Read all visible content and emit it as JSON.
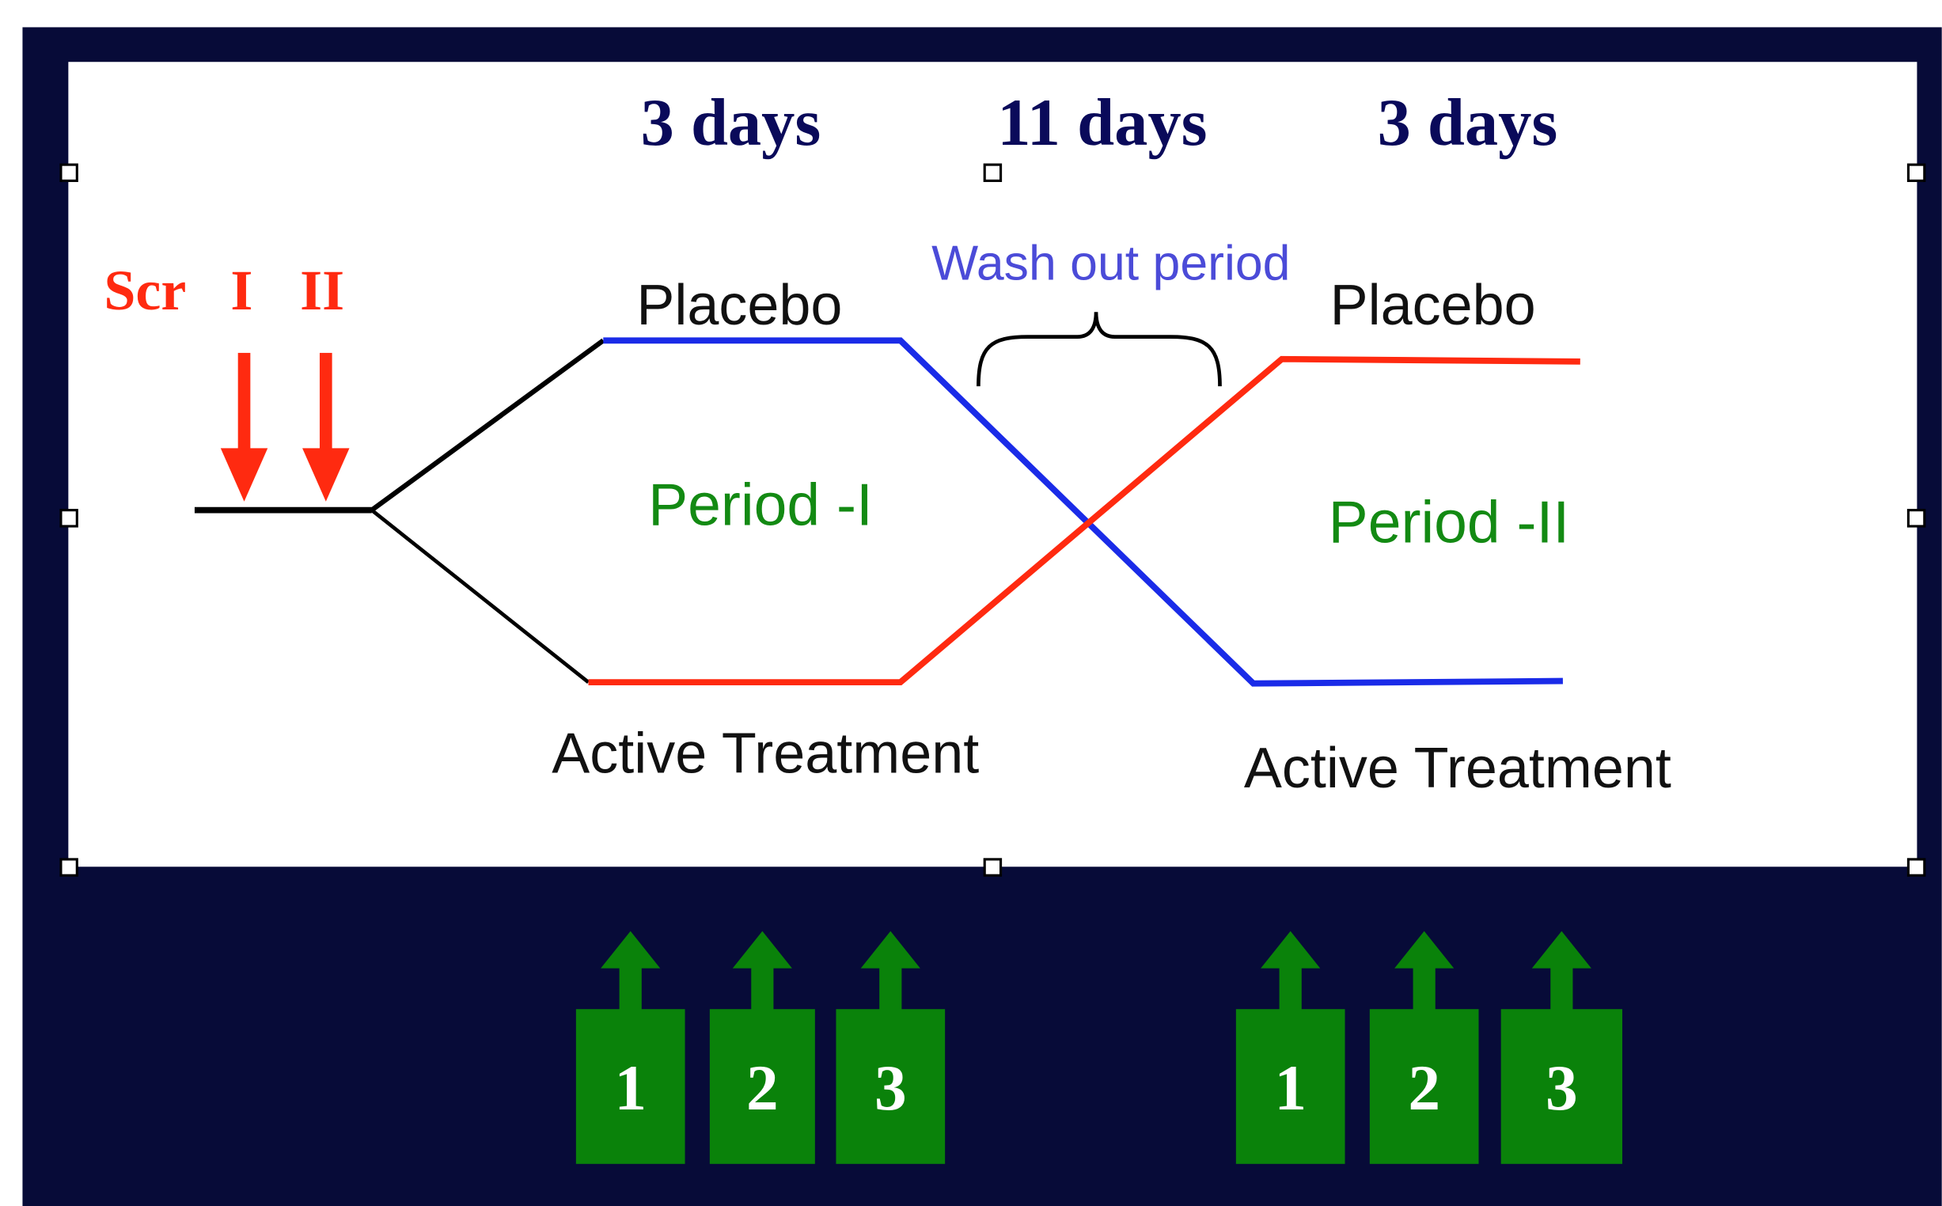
{
  "durations": [
    "3 days",
    "11 days",
    "3 days"
  ],
  "screening": {
    "scr": "Scr",
    "visit1": "I",
    "visit2": "II"
  },
  "period1": {
    "top": "Placebo",
    "bottom": "Active Treatment",
    "label": "Period -I"
  },
  "washout": "Wash out period",
  "period2": {
    "top": "Placebo",
    "bottom": "Active Treatment",
    "label": "Period -II"
  },
  "sampling_days": [
    "1",
    "2",
    "3",
    "1",
    "2",
    "3"
  ]
}
